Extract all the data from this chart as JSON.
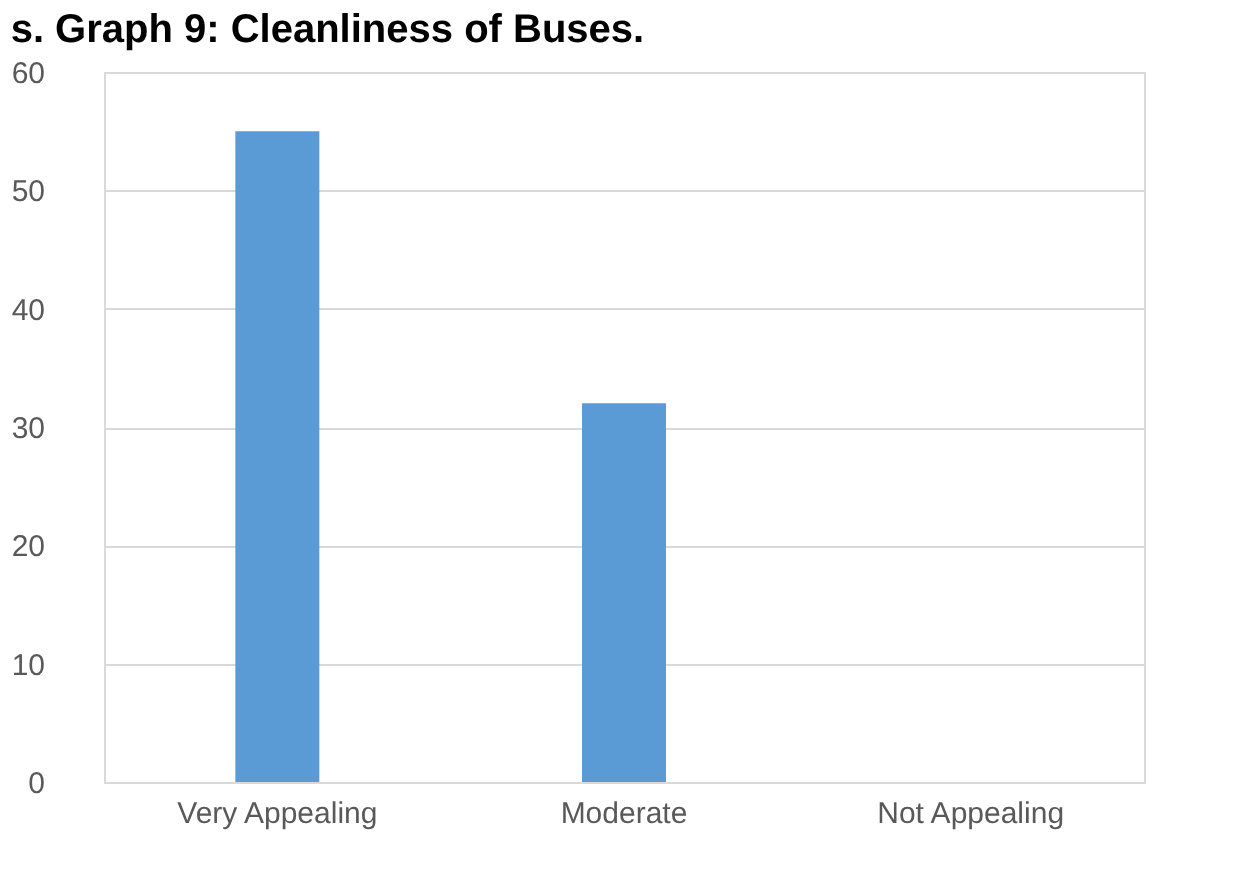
{
  "chart_data": {
    "type": "bar",
    "title": "s. Graph 9: Cleanliness of Buses.",
    "categories": [
      "Very Appealing",
      "Moderate",
      "Not Appealing"
    ],
    "values": [
      55,
      32,
      0
    ],
    "color": "#5b9bd5",
    "ylim": [
      0,
      60
    ],
    "yticks": [
      0,
      10,
      20,
      30,
      40,
      50,
      60
    ],
    "grid": "y"
  }
}
